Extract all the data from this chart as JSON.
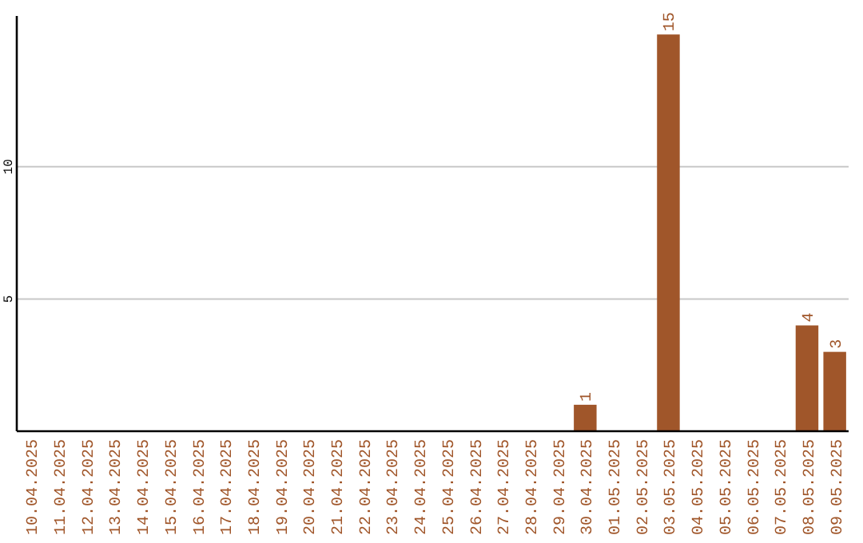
{
  "chart_data": {
    "type": "bar",
    "categories": [
      "10.04.2025",
      "11.04.2025",
      "12.04.2025",
      "13.04.2025",
      "14.04.2025",
      "15.04.2025",
      "16.04.2025",
      "17.04.2025",
      "18.04.2025",
      "19.04.2025",
      "20.04.2025",
      "21.04.2025",
      "22.04.2025",
      "23.04.2025",
      "24.04.2025",
      "25.04.2025",
      "26.04.2025",
      "27.04.2025",
      "28.04.2025",
      "29.04.2025",
      "30.04.2025",
      "01.05.2025",
      "02.05.2025",
      "03.05.2025",
      "04.05.2025",
      "05.05.2025",
      "06.05.2025",
      "07.05.2025",
      "08.05.2025",
      "09.05.2025"
    ],
    "values": [
      0,
      0,
      0,
      0,
      0,
      0,
      0,
      0,
      0,
      0,
      0,
      0,
      0,
      0,
      0,
      0,
      0,
      0,
      0,
      0,
      1,
      0,
      0,
      15,
      0,
      0,
      0,
      0,
      4,
      3
    ],
    "value_labels": [
      null,
      null,
      null,
      null,
      null,
      null,
      null,
      null,
      null,
      null,
      null,
      null,
      null,
      null,
      null,
      null,
      null,
      null,
      null,
      null,
      "1",
      null,
      null,
      "15",
      null,
      null,
      null,
      null,
      "4",
      "3"
    ],
    "color": "#a0562a",
    "ylim": [
      0,
      15.7
    ],
    "yticks": [
      5,
      10
    ],
    "grid": "y"
  }
}
